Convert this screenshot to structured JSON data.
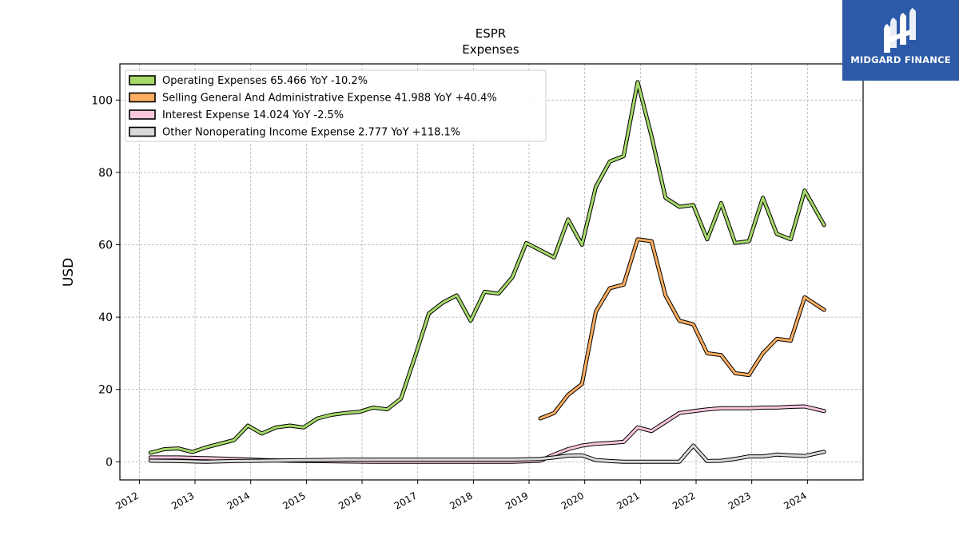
{
  "chart_data": {
    "type": "line",
    "title": "ESPR",
    "subtitle": "Expenses",
    "ylabel": "USD",
    "xlabel": "",
    "xlim": [
      2011.65,
      2025.0
    ],
    "ylim": [
      -5,
      110
    ],
    "yticks": [
      0,
      20,
      40,
      60,
      80,
      100
    ],
    "xticks": [
      "2012",
      "2013",
      "2014",
      "2015",
      "2016",
      "2017",
      "2018",
      "2019",
      "2020",
      "2021",
      "2022",
      "2023",
      "2024"
    ],
    "grid": true,
    "legend_position": "top-left",
    "series": [
      {
        "name": "Operating Expenses",
        "legend": "Operating Expenses  65.466 YoY -10.2%",
        "color": "#a6d96a",
        "x": [
          2012.2,
          2012.45,
          2012.7,
          2012.95,
          2013.2,
          2013.45,
          2013.7,
          2013.95,
          2014.2,
          2014.45,
          2014.7,
          2014.95,
          2015.2,
          2015.45,
          2015.7,
          2015.95,
          2016.2,
          2016.45,
          2016.7,
          2016.95,
          2017.2,
          2017.45,
          2017.7,
          2017.95,
          2018.2,
          2018.45,
          2018.7,
          2018.95,
          2019.2,
          2019.45,
          2019.7,
          2019.95,
          2020.2,
          2020.45,
          2020.7,
          2020.95,
          2021.2,
          2021.45,
          2021.7,
          2021.95,
          2022.2,
          2022.45,
          2022.7,
          2022.95,
          2023.2,
          2023.45,
          2023.7,
          2023.95,
          2024.3
        ],
        "values": [
          2.5,
          3.5,
          3.7,
          2.7,
          4.0,
          5.0,
          6.0,
          10.0,
          7.8,
          9.5,
          10.0,
          9.5,
          12.0,
          13.0,
          13.5,
          13.8,
          15.0,
          14.5,
          17.5,
          29.0,
          41.0,
          44.0,
          46.0,
          39.0,
          47.0,
          46.5,
          51.0,
          60.5,
          58.5,
          56.5,
          67.0,
          60.0,
          76.0,
          83.0,
          84.5,
          105.0,
          90.0,
          73.0,
          70.5,
          71.0,
          61.5,
          71.5,
          60.5,
          61.0,
          73.0,
          63.0,
          61.5,
          75.0,
          65.466
        ]
      },
      {
        "name": "Selling General And Administrative Expense",
        "legend": "Selling General And Administrative Expense  41.988 YoY +40.4%",
        "color": "#fdae61",
        "x": [
          2019.2,
          2019.45,
          2019.7,
          2019.95,
          2020.2,
          2020.45,
          2020.7,
          2020.95,
          2021.2,
          2021.45,
          2021.7,
          2021.95,
          2022.2,
          2022.45,
          2022.7,
          2022.95,
          2023.2,
          2023.45,
          2023.7,
          2023.95,
          2024.3
        ],
        "values": [
          12.0,
          13.5,
          18.5,
          21.5,
          41.5,
          48.0,
          49.0,
          61.5,
          61.0,
          46.0,
          39.0,
          38.0,
          30.0,
          29.5,
          24.5,
          24.0,
          30.0,
          34.0,
          33.5,
          45.5,
          41.988
        ]
      },
      {
        "name": "Interest Expense",
        "legend": "Interest Expense  14.024 YoY -2.5%",
        "color": "#fbc6de",
        "x": [
          2012.2,
          2012.7,
          2013.2,
          2013.7,
          2014.2,
          2014.7,
          2015.2,
          2015.7,
          2016.2,
          2016.7,
          2017.2,
          2017.7,
          2018.2,
          2018.7,
          2019.2,
          2019.45,
          2019.7,
          2019.95,
          2020.2,
          2020.45,
          2020.7,
          2020.95,
          2021.2,
          2021.45,
          2021.7,
          2021.95,
          2022.2,
          2022.45,
          2022.7,
          2022.95,
          2023.2,
          2023.45,
          2023.7,
          2023.95,
          2024.3
        ],
        "values": [
          1.2,
          1.2,
          1.0,
          0.8,
          0.5,
          0.3,
          0.2,
          0.1,
          0.0,
          0.0,
          0.0,
          0.0,
          0.0,
          0.0,
          0.3,
          2.0,
          3.5,
          4.5,
          5.0,
          5.2,
          5.5,
          9.5,
          8.5,
          11.0,
          13.5,
          14.0,
          14.5,
          14.8,
          14.8,
          14.8,
          15.0,
          15.0,
          15.2,
          15.3,
          14.024
        ]
      },
      {
        "name": "Other Nonoperating Income Expense",
        "legend": "Other Nonoperating Income Expense  2.777 YoY +118.1%",
        "color": "#d9d9d9",
        "x": [
          2012.2,
          2012.7,
          2013.2,
          2013.7,
          2014.2,
          2014.7,
          2015.2,
          2015.7,
          2016.2,
          2016.7,
          2017.2,
          2017.7,
          2018.2,
          2018.7,
          2019.2,
          2019.45,
          2019.7,
          2019.95,
          2020.2,
          2020.45,
          2020.7,
          2020.95,
          2021.2,
          2021.45,
          2021.7,
          2021.95,
          2022.2,
          2022.45,
          2022.7,
          2022.95,
          2023.2,
          2023.45,
          2023.7,
          2023.95,
          2024.3
        ],
        "values": [
          0.3,
          0.2,
          0.0,
          0.2,
          0.3,
          0.4,
          0.5,
          0.6,
          0.6,
          0.6,
          0.6,
          0.6,
          0.6,
          0.6,
          0.8,
          1.2,
          1.7,
          1.8,
          0.5,
          0.2,
          0.0,
          0.0,
          0.0,
          0.0,
          0.0,
          4.5,
          0.2,
          0.3,
          0.8,
          1.5,
          1.5,
          2.0,
          1.8,
          1.6,
          2.777
        ]
      }
    ]
  },
  "logo": {
    "text": "MIDGARD FINANCE",
    "background": "#2c5aa8"
  }
}
